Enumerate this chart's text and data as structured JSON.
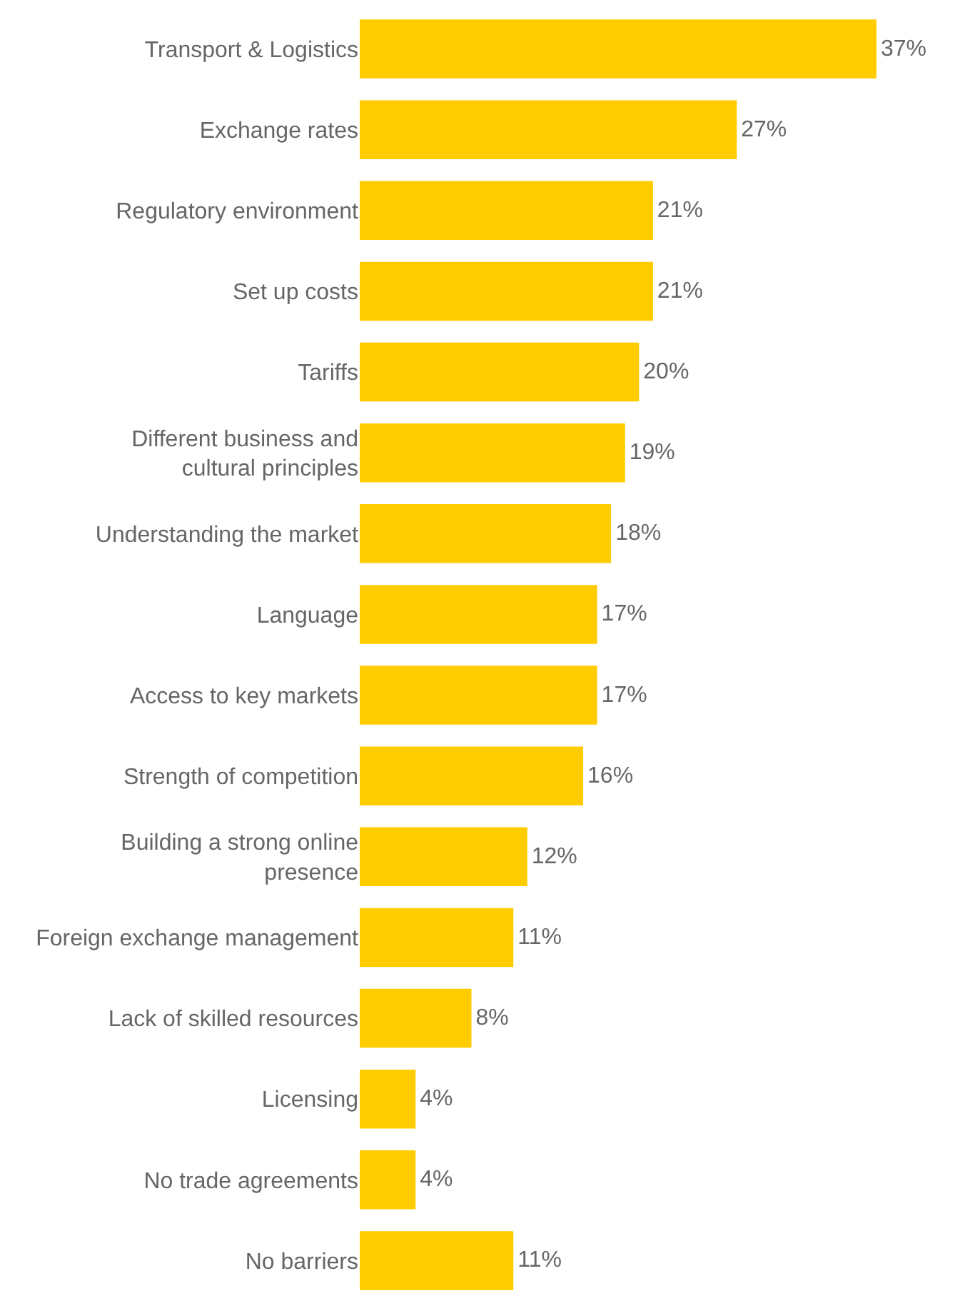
{
  "chart_data": {
    "type": "bar",
    "orientation": "horizontal",
    "categories": [
      "Transport & Logistics",
      "Exchange rates",
      "Regulatory environment",
      "Set up costs",
      "Tariffs",
      "Different business and cultural principles",
      "Understanding the market",
      "Language",
      "Access to key markets",
      "Strength of competition",
      "Building a strong online presence",
      "Foreign exchange management",
      "Lack of skilled resources",
      "Licensing",
      "No trade agreements",
      "No barriers"
    ],
    "values": [
      37,
      27,
      21,
      21,
      20,
      19,
      18,
      17,
      17,
      16,
      12,
      11,
      8,
      4,
      4,
      11
    ],
    "value_labels": [
      "37%",
      "27%",
      "21%",
      "21%",
      "20%",
      "19%",
      "18%",
      "17%",
      "17%",
      "16%",
      "12%",
      "11%",
      "8%",
      "4%",
      "4%",
      "11%"
    ],
    "color": "#ffcc00",
    "grid": false,
    "legend": false,
    "tick_labels": "y"
  }
}
